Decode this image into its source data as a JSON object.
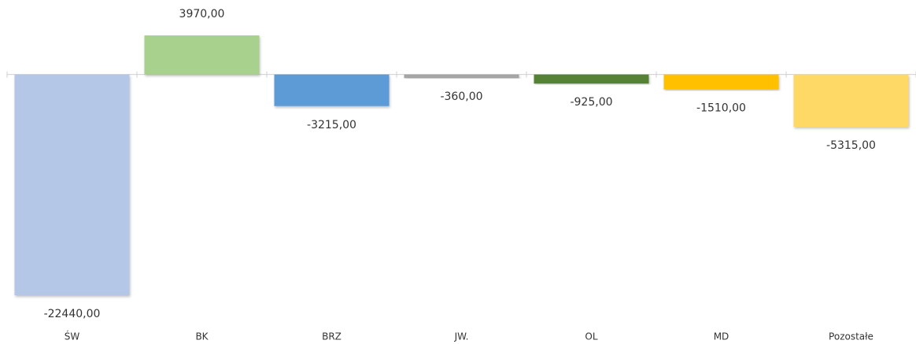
{
  "chart_data": {
    "type": "bar",
    "categories": [
      "ŚW",
      "BK",
      "BRZ",
      "JW.",
      "OL",
      "MD",
      "Pozostałe"
    ],
    "values": [
      -22440,
      3970,
      -3215,
      -360,
      -925,
      -1510,
      -5315
    ],
    "value_labels": [
      "-22440,00",
      "3970,00",
      "-3215,00",
      "-360,00",
      "-925,00",
      "-1510,00",
      "-5315,00"
    ],
    "colors": [
      "#b4c7e7",
      "#a9d18e",
      "#5b9bd5",
      "#a5a5a5",
      "#548235",
      "#ffc000",
      "#ffd966"
    ],
    "grid": false
  }
}
